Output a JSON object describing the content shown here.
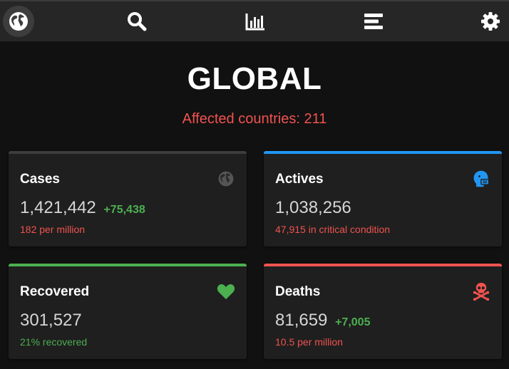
{
  "nav": {
    "items": [
      {
        "icon": "globe-icon",
        "active": true
      },
      {
        "icon": "search-icon",
        "active": false
      },
      {
        "icon": "bar-chart-icon",
        "active": false
      },
      {
        "icon": "list-icon",
        "active": false
      },
      {
        "icon": "gear-icon",
        "active": false
      }
    ]
  },
  "header": {
    "title": "GLOBAL",
    "affected_countries": "Affected countries: 211"
  },
  "cards": {
    "cases": {
      "label": "Cases",
      "value": "1,421,442",
      "delta": "+75,438",
      "sub": "182 per million",
      "icon": "globe-icon",
      "accent": "#3d3d3d",
      "sub_color": "#ef5350"
    },
    "actives": {
      "label": "Actives",
      "value": "1,038,256",
      "sub": "47,915 in critical condition",
      "icon": "masked-face-icon",
      "accent": "#2196f3",
      "sub_color": "#ef5350"
    },
    "recovered": {
      "label": "Recovered",
      "value": "301,527",
      "sub": "21% recovered",
      "icon": "heart-icon",
      "accent": "#4caf50",
      "sub_color": "#4caf50"
    },
    "deaths": {
      "label": "Deaths",
      "value": "81,659",
      "delta": "+7,005",
      "sub": "10.5 per million",
      "icon": "skull-crossbones-icon",
      "accent": "#ef5350",
      "sub_color": "#ef5350"
    }
  }
}
